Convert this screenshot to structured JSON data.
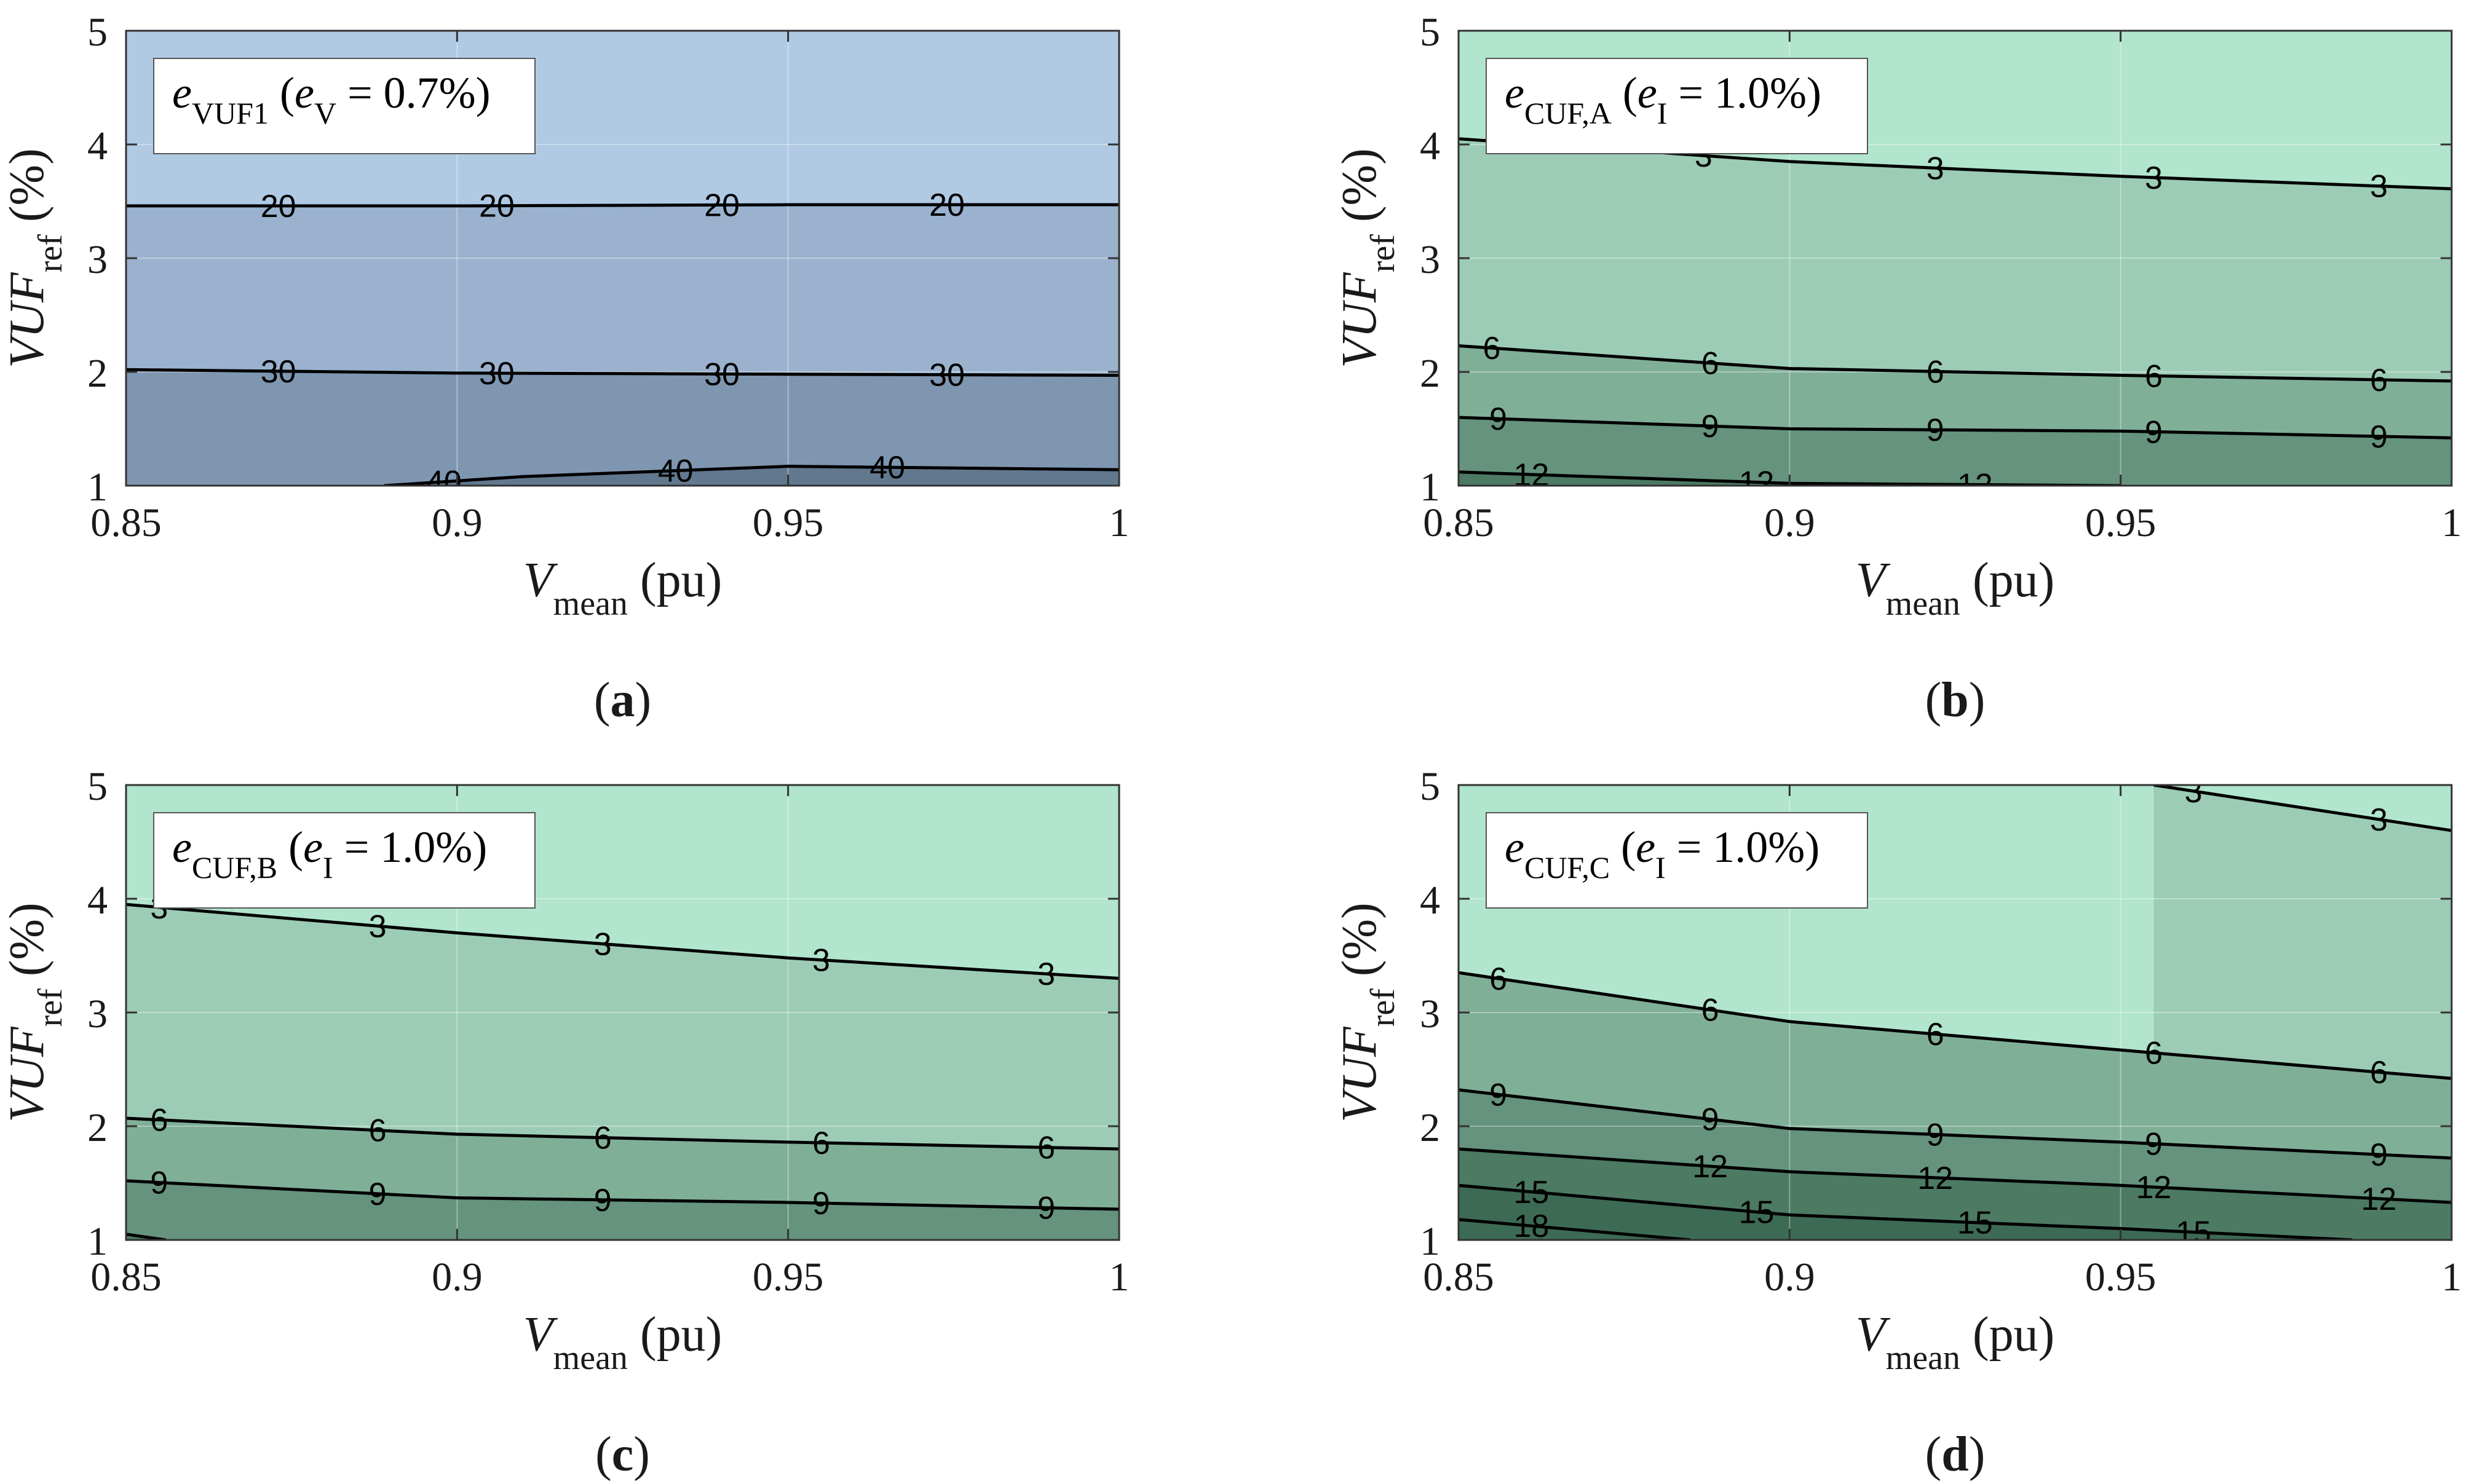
{
  "colors": {
    "blue": [
      "#b0cae4",
      "#9ab2cd",
      "#7f96b1",
      "#62788f"
    ],
    "green": [
      "#b1e5cd",
      "#9cccb5",
      "#80af98",
      "#65937d",
      "#4c7a63",
      "#3d6a54"
    ]
  },
  "chart_data": [
    {
      "type": "contour",
      "panel": "(a)",
      "palette": "blue",
      "legend": {
        "main": "e",
        "sub": "VUF1",
        "open": " (",
        "ivar": "e",
        "isub": "V",
        "value": " = 0.7%)"
      },
      "xlabel": {
        "main": "V",
        "sub": "mean",
        "unit": " (pu)"
      },
      "ylabel": {
        "main": "VUF",
        "sub": "ref",
        "unit": " (%)"
      },
      "xlim": [
        0.85,
        1
      ],
      "ylim": [
        1,
        5
      ],
      "xticks": [
        "0.85",
        "0.9",
        "0.95",
        "1"
      ],
      "yticks": [
        "1",
        "2",
        "3",
        "4",
        "5"
      ],
      "levels": [
        {
          "value": "20",
          "x": [
            0.85,
            0.9,
            0.95,
            1.0
          ],
          "y": [
            3.46,
            3.46,
            3.47,
            3.47
          ],
          "labels_at": [
            0.873,
            0.906,
            0.94,
            0.974
          ]
        },
        {
          "value": "30",
          "x": [
            0.85,
            0.9,
            0.95,
            1.0
          ],
          "y": [
            2.02,
            1.99,
            1.98,
            1.97
          ],
          "labels_at": [
            0.873,
            0.906,
            0.94,
            0.974
          ]
        },
        {
          "value": "40",
          "x": [
            0.889,
            0.91,
            0.95,
            1.0
          ],
          "y": [
            1.0,
            1.08,
            1.17,
            1.14
          ],
          "labels_at": [
            0.898,
            0.933,
            0.965
          ]
        }
      ]
    },
    {
      "type": "contour",
      "panel": "(b)",
      "palette": "green",
      "legend": {
        "main": "e",
        "sub": "CUF,A",
        "open": " (",
        "ivar": "e",
        "isub": "I",
        "value": " = 1.0%)"
      },
      "xlabel": {
        "main": "V",
        "sub": "mean",
        "unit": " (pu)"
      },
      "ylabel": {
        "main": "VUF",
        "sub": "ref",
        "unit": " (%)"
      },
      "xlim": [
        0.85,
        1
      ],
      "ylim": [
        1,
        5
      ],
      "xticks": [
        "0.85",
        "0.9",
        "0.95",
        "1"
      ],
      "yticks": [
        "1",
        "2",
        "3",
        "4",
        "5"
      ],
      "levels": [
        {
          "value": "3",
          "x": [
            0.85,
            0.9,
            0.95,
            1.0
          ],
          "y": [
            4.05,
            3.85,
            3.72,
            3.61
          ],
          "labels_at": [
            0.887,
            0.922,
            0.955,
            0.989
          ]
        },
        {
          "value": "6",
          "x": [
            0.85,
            0.9,
            0.95,
            1.0
          ],
          "y": [
            2.23,
            2.03,
            1.97,
            1.92
          ],
          "labels_at": [
            0.855,
            0.888,
            0.922,
            0.955,
            0.989
          ]
        },
        {
          "value": "9",
          "x": [
            0.85,
            0.9,
            0.95,
            1.0
          ],
          "y": [
            1.6,
            1.5,
            1.48,
            1.42
          ],
          "labels_at": [
            0.856,
            0.888,
            0.922,
            0.955,
            0.989
          ]
        },
        {
          "value": "12",
          "x": [
            0.85,
            0.9,
            0.95
          ],
          "y": [
            1.12,
            1.02,
            1.0
          ],
          "labels_at": [
            0.861,
            0.895,
            0.928
          ]
        }
      ]
    },
    {
      "type": "contour",
      "panel": "(c)",
      "palette": "green",
      "legend": {
        "main": "e",
        "sub": "CUF,B",
        "open": " (",
        "ivar": "e",
        "isub": "I",
        "value": " = 1.0%)"
      },
      "xlabel": {
        "main": "V",
        "sub": "mean",
        "unit": " (pu)"
      },
      "ylabel": {
        "main": "VUF",
        "sub": "ref",
        "unit": " (%)"
      },
      "xlim": [
        0.85,
        1
      ],
      "ylim": [
        1,
        5
      ],
      "xticks": [
        "0.85",
        "0.9",
        "0.95",
        "1"
      ],
      "yticks": [
        "1",
        "2",
        "3",
        "4",
        "5"
      ],
      "levels": [
        {
          "value": "3",
          "x": [
            0.85,
            0.9,
            0.95,
            1.0
          ],
          "y": [
            3.95,
            3.7,
            3.48,
            3.3
          ],
          "labels_at": [
            0.855,
            0.888,
            0.922,
            0.955,
            0.989
          ]
        },
        {
          "value": "6",
          "x": [
            0.85,
            0.9,
            0.95,
            1.0
          ],
          "y": [
            2.07,
            1.93,
            1.86,
            1.8
          ],
          "labels_at": [
            0.855,
            0.888,
            0.922,
            0.955,
            0.989
          ]
        },
        {
          "value": "9",
          "x": [
            0.85,
            0.9,
            0.95,
            1.0
          ],
          "y": [
            1.52,
            1.37,
            1.33,
            1.27
          ],
          "labels_at": [
            0.855,
            0.888,
            0.922,
            0.955,
            0.989
          ]
        },
        {
          "value": "",
          "x": [
            0.85,
            0.856
          ],
          "y": [
            1.05,
            1.0
          ],
          "labels_at": []
        }
      ]
    },
    {
      "type": "contour",
      "panel": "(d)",
      "palette": "green",
      "legend": {
        "main": "e",
        "sub": "CUF,C",
        "open": " (",
        "ivar": "e",
        "isub": "I",
        "value": " = 1.0%)"
      },
      "xlabel": {
        "main": "V",
        "sub": "mean",
        "unit": " (pu)"
      },
      "ylabel": {
        "main": "VUF",
        "sub": "ref",
        "unit": " (%)"
      },
      "xlim": [
        0.85,
        1
      ],
      "ylim": [
        1,
        5
      ],
      "xticks": [
        "0.85",
        "0.9",
        "0.95",
        "1"
      ],
      "yticks": [
        "1",
        "2",
        "3",
        "4",
        "5"
      ],
      "levels": [
        {
          "value": "3",
          "x": [
            0.955,
            1.0
          ],
          "y": [
            5.0,
            4.6
          ],
          "labels_at": [
            0.961,
            0.989
          ]
        },
        {
          "value": "6",
          "x": [
            0.85,
            0.9,
            0.95,
            1.0
          ],
          "y": [
            3.35,
            2.92,
            2.67,
            2.42
          ],
          "labels_at": [
            0.856,
            0.888,
            0.922,
            0.955,
            0.989
          ]
        },
        {
          "value": "9",
          "x": [
            0.85,
            0.9,
            0.95,
            1.0
          ],
          "y": [
            2.32,
            1.98,
            1.86,
            1.72
          ],
          "labels_at": [
            0.856,
            0.888,
            0.922,
            0.955,
            0.989
          ]
        },
        {
          "value": "12",
          "x": [
            0.85,
            0.9,
            0.95,
            1.0
          ],
          "y": [
            1.8,
            1.6,
            1.48,
            1.33
          ],
          "labels_at": [
            0.888,
            0.922,
            0.955,
            0.989
          ]
        },
        {
          "value": "15",
          "x": [
            0.85,
            0.9,
            0.95,
            0.985
          ],
          "y": [
            1.48,
            1.22,
            1.1,
            1.0
          ],
          "labels_at": [
            0.861,
            0.895,
            0.928,
            0.961
          ]
        },
        {
          "value": "18",
          "x": [
            0.85,
            0.885
          ],
          "y": [
            1.18,
            1.0
          ],
          "labels_at": [
            0.861
          ]
        }
      ]
    }
  ]
}
